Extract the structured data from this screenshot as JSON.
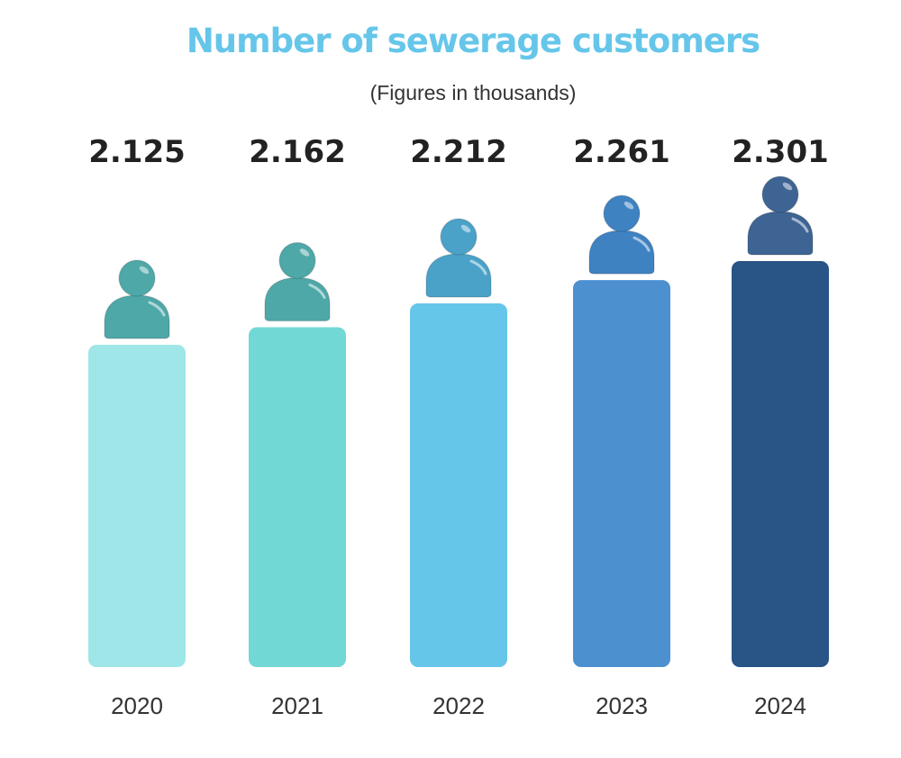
{
  "chart_data": {
    "type": "bar",
    "title": "Number of sewerage customers",
    "subtitle": "(Figures in thousands)",
    "xlabel": "",
    "ylabel": "",
    "categories": [
      "2020",
      "2021",
      "2022",
      "2023",
      "2024"
    ],
    "values": [
      2.125,
      2.162,
      2.212,
      2.261,
      2.301
    ],
    "value_labels": [
      "2.125",
      "2.162",
      "2.212",
      "2.261",
      "2.301"
    ],
    "bar_colors": [
      "#9fe6e8",
      "#72d8d6",
      "#66c6ea",
      "#4c90d0",
      "#285486"
    ],
    "icon_colors": [
      "#4fa8a8",
      "#4fa8a8",
      "#4aa2c8",
      "#3f82c2",
      "#3e6494"
    ],
    "icon": "person-icon",
    "title_color": "#66c6ea",
    "grid": false,
    "legend": "none"
  }
}
